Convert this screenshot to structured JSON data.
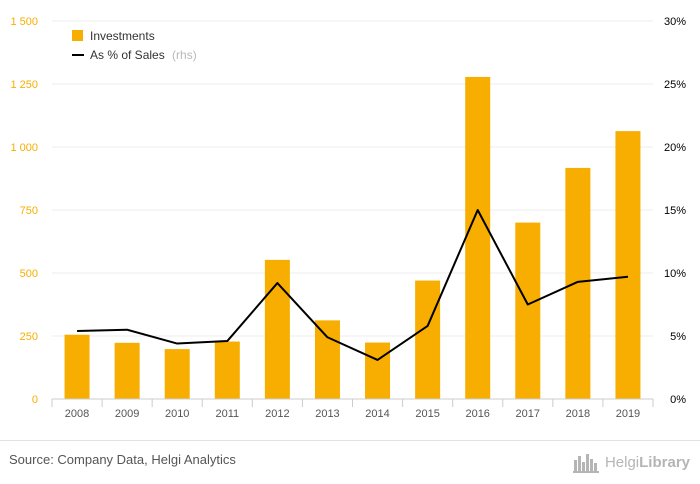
{
  "colors": {
    "bar": "#F7AE00",
    "line": "#000000",
    "left_axis": "#F7AE00",
    "right_axis": "#000000",
    "grid": "#ececec",
    "rhs_note": "#b9b9b9"
  },
  "chart_data": {
    "type": "bar",
    "categories": [
      "2008",
      "2009",
      "2010",
      "2011",
      "2012",
      "2013",
      "2014",
      "2015",
      "2016",
      "2017",
      "2018",
      "2019"
    ],
    "series": [
      {
        "name": "Investments",
        "type": "bar",
        "axis": "left",
        "values": [
          255,
          223,
          198,
          228,
          552,
          312,
          224,
          470,
          1278,
          700,
          917,
          1063
        ]
      },
      {
        "name": "As % of Sales",
        "type": "line",
        "axis": "right",
        "values": [
          5.4,
          5.5,
          4.4,
          4.6,
          9.2,
          4.9,
          3.1,
          5.8,
          15.0,
          7.5,
          9.3,
          9.7
        ]
      }
    ],
    "left_axis": {
      "ylim": [
        0,
        1500
      ],
      "ticks": [
        0,
        250,
        500,
        750,
        1000,
        1250,
        1500
      ],
      "tick_labels": [
        "0",
        "250",
        "500",
        "750",
        "1 000",
        "1 250",
        "1 500"
      ]
    },
    "right_axis": {
      "ylim": [
        0,
        30
      ],
      "ticks": [
        0,
        5,
        10,
        15,
        20,
        25,
        30
      ],
      "tick_labels": [
        "0%",
        "5%",
        "10%",
        "15%",
        "20%",
        "25%",
        "30%"
      ]
    },
    "legend": {
      "position": "top-left",
      "items": [
        {
          "label": "Investments",
          "note": ""
        },
        {
          "label": "As % of Sales",
          "note": "(rhs)"
        }
      ]
    },
    "grid": true
  },
  "footer": {
    "source": "Source: Company Data, Helgi Analytics",
    "brand_part1": "Helgi",
    "brand_part2": "Library"
  }
}
